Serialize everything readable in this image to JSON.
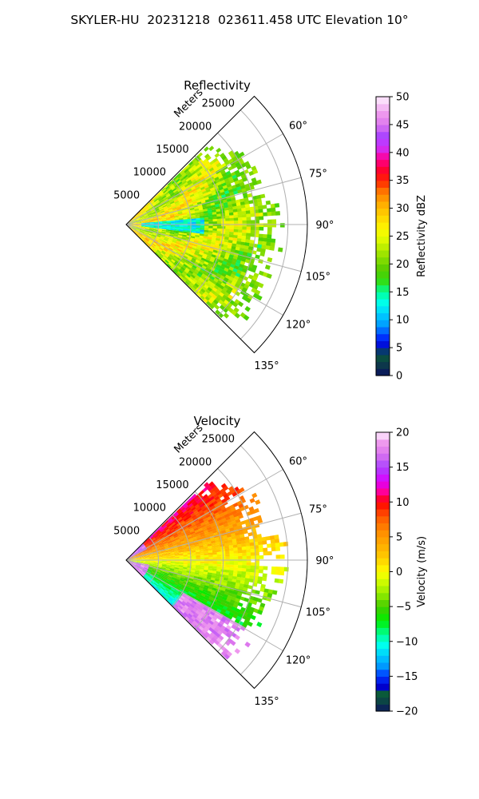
{
  "figure": {
    "title": "SKYLER-HU  20231218  023611.458 UTC Elevation 10°"
  },
  "chart_data": [
    {
      "type": "heatmap",
      "projection": "polar-sector",
      "title": "Reflectivity",
      "radial_label": "Meters",
      "azimuth_range_deg": [
        45,
        135
      ],
      "range_limit_m": 28000,
      "range_ticks": [
        5000,
        10000,
        15000,
        20000,
        25000
      ],
      "range_tick_labels": [
        "5000",
        "10000",
        "15000",
        "20000",
        "25000"
      ],
      "azimuth_ticks": [
        60,
        75,
        90,
        105,
        120,
        135
      ],
      "azimuth_tick_labels": [
        "60°",
        "75°",
        "90°",
        "105°",
        "120°",
        "135°"
      ],
      "grid": true,
      "colorbar": {
        "label": "Reflectivity dBZ",
        "min": 0,
        "max": 50,
        "ticks": [
          0,
          5,
          10,
          15,
          20,
          25,
          30,
          35,
          40,
          45,
          50
        ],
        "tick_labels": [
          "0",
          "5",
          "10",
          "15",
          "20",
          "25",
          "30",
          "35",
          "40",
          "45",
          "50"
        ],
        "stops": [
          {
            "v": 0,
            "c": "#0a1060"
          },
          {
            "v": 2,
            "c": "#0d3a4a"
          },
          {
            "v": 4,
            "c": "#0a5a3a"
          },
          {
            "v": 5,
            "c": "#0000cc"
          },
          {
            "v": 7,
            "c": "#0033ff"
          },
          {
            "v": 9,
            "c": "#0099ff"
          },
          {
            "v": 11,
            "c": "#00ccff"
          },
          {
            "v": 13,
            "c": "#00ffee"
          },
          {
            "v": 15,
            "c": "#00ff99"
          },
          {
            "v": 17,
            "c": "#33dd11"
          },
          {
            "v": 19,
            "c": "#55cc00"
          },
          {
            "v": 21,
            "c": "#88dd00"
          },
          {
            "v": 23,
            "c": "#bbee00"
          },
          {
            "v": 25,
            "c": "#eeff00"
          },
          {
            "v": 27,
            "c": "#ffee00"
          },
          {
            "v": 29,
            "c": "#ffcc00"
          },
          {
            "v": 31,
            "c": "#ffaa00"
          },
          {
            "v": 33,
            "c": "#ff7700"
          },
          {
            "v": 35,
            "c": "#ff2200"
          },
          {
            "v": 37,
            "c": "#ff0033"
          },
          {
            "v": 39,
            "c": "#ff0099"
          },
          {
            "v": 41,
            "c": "#cc33ff"
          },
          {
            "v": 43,
            "c": "#aa44ff"
          },
          {
            "v": 45,
            "c": "#dd77ee"
          },
          {
            "v": 47,
            "c": "#ee99ee"
          },
          {
            "v": 50,
            "c": "#fff0ff"
          }
        ]
      }
    },
    {
      "type": "heatmap",
      "projection": "polar-sector",
      "title": "Velocity",
      "radial_label": "Meters",
      "azimuth_range_deg": [
        45,
        135
      ],
      "range_limit_m": 28000,
      "range_ticks": [
        5000,
        10000,
        15000,
        20000,
        25000
      ],
      "range_tick_labels": [
        "5000",
        "10000",
        "15000",
        "20000",
        "25000"
      ],
      "azimuth_ticks": [
        60,
        75,
        90,
        105,
        120,
        135
      ],
      "azimuth_tick_labels": [
        "60°",
        "75°",
        "90°",
        "105°",
        "120°",
        "135°"
      ],
      "grid": true,
      "colorbar": {
        "label": "Velocity (m/s)",
        "min": -20,
        "max": 20,
        "ticks": [
          -20,
          -15,
          -10,
          -5,
          0,
          5,
          10,
          15,
          20
        ],
        "tick_labels": [
          "−20",
          "−15",
          "−10",
          "−5",
          "0",
          "5",
          "10",
          "15",
          "20"
        ],
        "stops": [
          {
            "v": -20,
            "c": "#0a1060"
          },
          {
            "v": -19,
            "c": "#0d3a4a"
          },
          {
            "v": -17.5,
            "c": "#0a5a3a"
          },
          {
            "v": -16.5,
            "c": "#0000cc"
          },
          {
            "v": -15,
            "c": "#0033ff"
          },
          {
            "v": -13.5,
            "c": "#0099ff"
          },
          {
            "v": -12,
            "c": "#00ccff"
          },
          {
            "v": -10.5,
            "c": "#00ffee"
          },
          {
            "v": -9,
            "c": "#00ff99"
          },
          {
            "v": -7,
            "c": "#00ee00"
          },
          {
            "v": -5,
            "c": "#44cc00"
          },
          {
            "v": -3,
            "c": "#99ee00"
          },
          {
            "v": -1,
            "c": "#ddff00"
          },
          {
            "v": 0,
            "c": "#ffff00"
          },
          {
            "v": 2,
            "c": "#ffcc00"
          },
          {
            "v": 4,
            "c": "#ffaa00"
          },
          {
            "v": 6,
            "c": "#ff8800"
          },
          {
            "v": 8,
            "c": "#ff5500"
          },
          {
            "v": 10,
            "c": "#ff0000"
          },
          {
            "v": 11.5,
            "c": "#ff0099"
          },
          {
            "v": 13,
            "c": "#dd00ff"
          },
          {
            "v": 15,
            "c": "#aa44ff"
          },
          {
            "v": 17,
            "c": "#dd77ee"
          },
          {
            "v": 18.5,
            "c": "#ee99ee"
          },
          {
            "v": 20,
            "c": "#fff0ff"
          }
        ]
      }
    }
  ]
}
